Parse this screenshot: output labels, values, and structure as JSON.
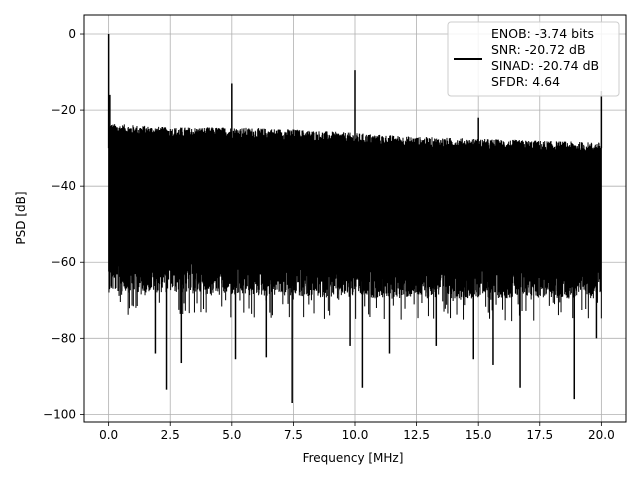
{
  "chart_data": {
    "type": "line",
    "title": "",
    "xlabel": "Frequency [MHz]",
    "ylabel": "PSD [dB]",
    "xlim": [
      -1.0,
      21.0
    ],
    "ylim": [
      -102,
      5
    ],
    "xticks": [
      0.0,
      2.5,
      5.0,
      7.5,
      10.0,
      12.5,
      15.0,
      17.5,
      20.0
    ],
    "xtick_labels": [
      "0.0",
      "2.5",
      "5.0",
      "7.5",
      "10.0",
      "12.5",
      "15.0",
      "17.5",
      "20.0"
    ],
    "yticks": [
      0,
      -20,
      -40,
      -60,
      -80,
      -100
    ],
    "ytick_labels": [
      "0",
      "−20",
      "−40",
      "−60",
      "−80",
      "−100"
    ],
    "grid": true,
    "legend_position": "upper-right",
    "legend": {
      "lines": [
        "ENOB: -3.74 bits",
        "SNR: -20.72 dB",
        "SINAD: -20.74 dB",
        "SFDR: 4.64"
      ]
    },
    "series": [
      {
        "color": "#000000",
        "x_range": [
          0.0,
          20.0
        ],
        "noise_floor_top": [
          [
            0.0,
            -25
          ],
          [
            2.5,
            -26
          ],
          [
            5.0,
            -26
          ],
          [
            7.5,
            -26.5
          ],
          [
            10.0,
            -27.5
          ],
          [
            12.5,
            -28.5
          ],
          [
            15.0,
            -29
          ],
          [
            17.5,
            -29.5
          ],
          [
            20.0,
            -30
          ]
        ],
        "noise_floor_bottom": [
          [
            0.0,
            -60
          ],
          [
            2.5,
            -60
          ],
          [
            5.0,
            -61
          ],
          [
            7.5,
            -61
          ],
          [
            10.0,
            -61.5
          ],
          [
            12.5,
            -61.5
          ],
          [
            15.0,
            -61.5
          ],
          [
            17.5,
            -61.5
          ],
          [
            20.0,
            -61.5
          ]
        ],
        "deep_dips": [
          [
            1.9,
            -84
          ],
          [
            2.35,
            -93.5
          ],
          [
            2.95,
            -86.5
          ],
          [
            5.15,
            -85.5
          ],
          [
            6.4,
            -85
          ],
          [
            7.45,
            -97
          ],
          [
            9.8,
            -82
          ],
          [
            10.3,
            -93
          ],
          [
            11.4,
            -84
          ],
          [
            13.3,
            -82
          ],
          [
            14.8,
            -85.5
          ],
          [
            15.6,
            -87
          ],
          [
            16.7,
            -93
          ],
          [
            18.9,
            -96
          ],
          [
            19.8,
            -80
          ]
        ],
        "peaks": [
          [
            0.0,
            0
          ],
          [
            0.05,
            -16
          ],
          [
            5.0,
            -13
          ],
          [
            10.0,
            -9.5
          ],
          [
            15.0,
            -22
          ],
          [
            20.0,
            -15
          ]
        ]
      }
    ]
  }
}
